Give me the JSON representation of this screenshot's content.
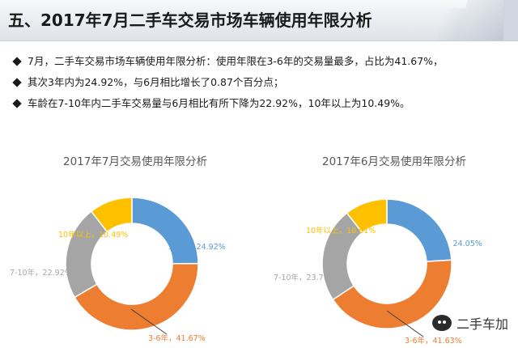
{
  "header": {
    "title": "五、2017年7月二手车交易市场车辆使用年限分析"
  },
  "bullets": [
    "7月，二手车交易市场车辆使用年限分析：使用年限在3-6年的交易量最多，占比为41.67%，",
    "其次3年内为24.92%，与6月相比增长了0.87个百分点；",
    "车龄在7-10年内二手车交易量与6月相比有所下降为22.92%，10年以上为10.49%。"
  ],
  "watermark": {
    "text": "二手车加",
    "icon": "wechat-icon"
  },
  "chart_data": [
    {
      "type": "pie",
      "subtype": "donut",
      "title": "2017年7月交易使用年限分析",
      "categories": [
        "3年内",
        "3-6年",
        "7-10年",
        "10年以上"
      ],
      "values": [
        24.92,
        41.67,
        22.92,
        10.49
      ],
      "labels": [
        "3年内，24.92%",
        "3-6年，41.67%",
        "7-10年，22.92%",
        "10年以上，10.49%"
      ],
      "colors": [
        "#5b9bd5",
        "#ed7d31",
        "#a5a5a5",
        "#ffc000"
      ]
    },
    {
      "type": "pie",
      "subtype": "donut",
      "title": "2017年6月交易使用年限分析",
      "categories": [
        "3年内",
        "3-6年",
        "7-10年",
        "10年以上"
      ],
      "values": [
        24.05,
        41.63,
        23.71,
        10.61
      ],
      "labels": [
        "3年内，24.05%",
        "3-6年，41.63%",
        "7-10年，23.71%",
        "10年以上，10.61%"
      ],
      "colors": [
        "#5b9bd5",
        "#ed7d31",
        "#a5a5a5",
        "#ffc000"
      ]
    }
  ]
}
